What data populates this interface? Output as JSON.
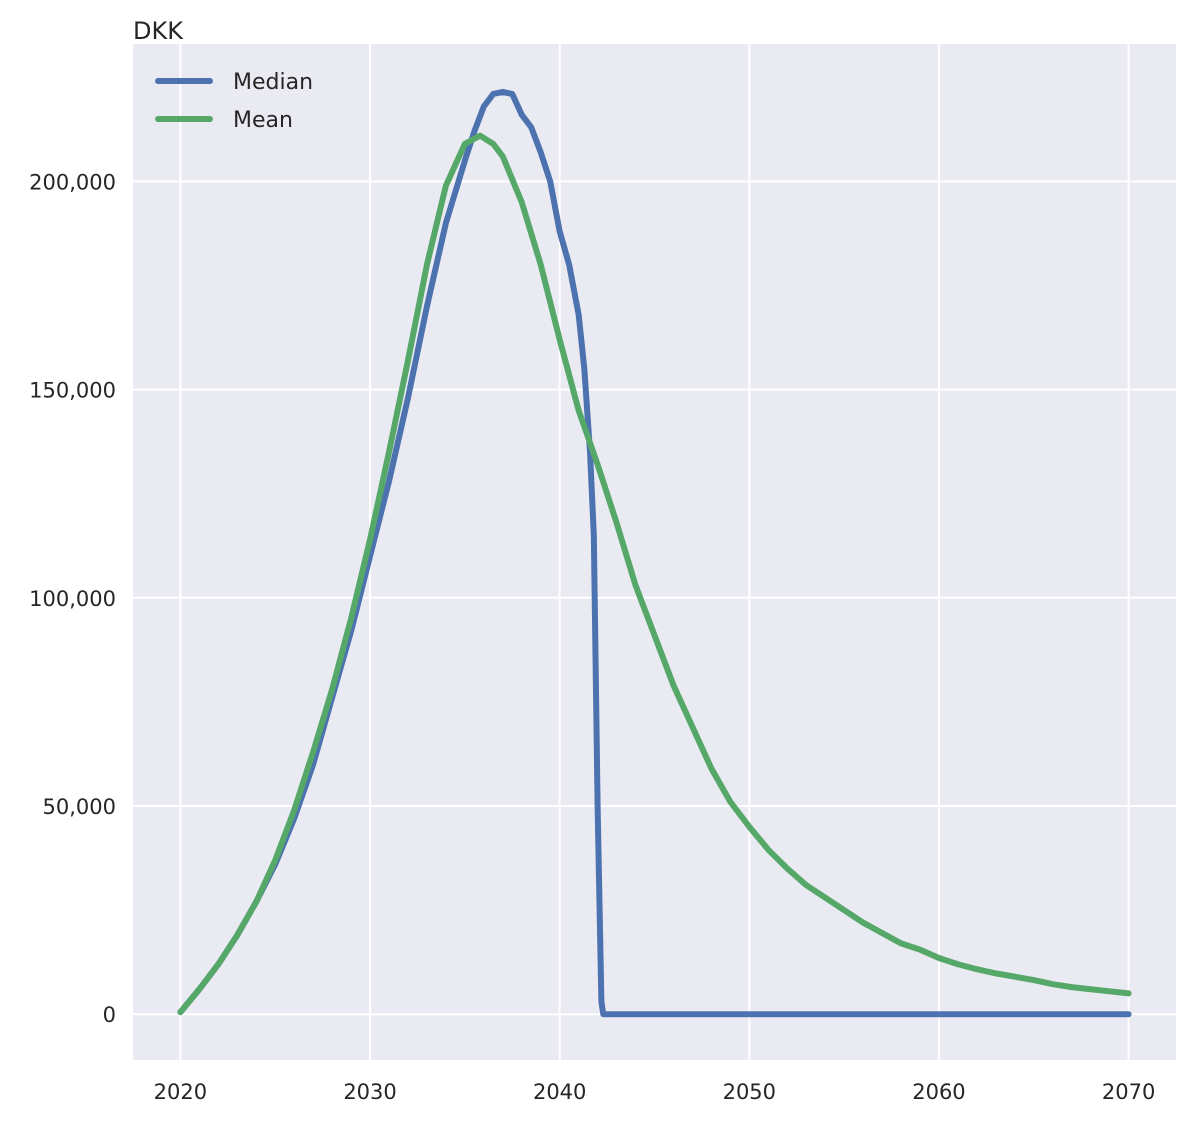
{
  "chart_data": {
    "type": "line",
    "ylabel": "DKK",
    "xlim": [
      2017.5,
      2072.5
    ],
    "ylim": [
      -11000,
      233000
    ],
    "x_ticks": [
      2020,
      2030,
      2040,
      2050,
      2060,
      2070
    ],
    "x_tick_labels": [
      "2020",
      "2030",
      "2040",
      "2050",
      "2060",
      "2070"
    ],
    "y_ticks": [
      0,
      50000,
      100000,
      150000,
      200000
    ],
    "y_tick_labels": [
      "0",
      "50,000",
      "100,000",
      "150,000",
      "200,000"
    ],
    "grid": true,
    "legend_position": "top-left",
    "background_color": "#eaeaf2",
    "series": [
      {
        "name": "Median",
        "color": "#4c72b0",
        "points": [
          [
            2020,
            500
          ],
          [
            2021,
            6000
          ],
          [
            2022,
            12000
          ],
          [
            2023,
            19000
          ],
          [
            2024,
            27000
          ],
          [
            2025,
            36000
          ],
          [
            2026,
            47000
          ],
          [
            2027,
            60000
          ],
          [
            2028,
            76000
          ],
          [
            2029,
            92000
          ],
          [
            2030,
            110000
          ],
          [
            2031,
            128000
          ],
          [
            2032,
            148000
          ],
          [
            2033,
            170000
          ],
          [
            2034,
            190000
          ],
          [
            2035,
            205000
          ],
          [
            2035.5,
            212000
          ],
          [
            2036,
            218000
          ],
          [
            2036.5,
            221000
          ],
          [
            2037,
            221500
          ],
          [
            2037.5,
            221000
          ],
          [
            2038,
            216000
          ],
          [
            2038.5,
            213000
          ],
          [
            2039,
            207000
          ],
          [
            2039.5,
            200000
          ],
          [
            2040,
            188000
          ],
          [
            2040.5,
            180000
          ],
          [
            2041,
            168000
          ],
          [
            2041.3,
            155000
          ],
          [
            2041.6,
            135000
          ],
          [
            2041.8,
            115000
          ],
          [
            2042,
            50000
          ],
          [
            2042.2,
            3000
          ],
          [
            2042.3,
            0
          ],
          [
            2045,
            0
          ],
          [
            2050,
            0
          ],
          [
            2055,
            0
          ],
          [
            2060,
            0
          ],
          [
            2065,
            0
          ],
          [
            2070,
            0
          ]
        ]
      },
      {
        "name": "Mean",
        "color": "#55a868",
        "points": [
          [
            2020,
            500
          ],
          [
            2021,
            6000
          ],
          [
            2022,
            12000
          ],
          [
            2023,
            19000
          ],
          [
            2024,
            27000
          ],
          [
            2025,
            37000
          ],
          [
            2026,
            49000
          ],
          [
            2027,
            63000
          ],
          [
            2028,
            78000
          ],
          [
            2029,
            95000
          ],
          [
            2030,
            114000
          ],
          [
            2031,
            135000
          ],
          [
            2032,
            157000
          ],
          [
            2033,
            180000
          ],
          [
            2034,
            199000
          ],
          [
            2035,
            209000
          ],
          [
            2035.8,
            211000
          ],
          [
            2036.5,
            209000
          ],
          [
            2037,
            206000
          ],
          [
            2038,
            195000
          ],
          [
            2039,
            180000
          ],
          [
            2040,
            162000
          ],
          [
            2041,
            145000
          ],
          [
            2042,
            132000
          ],
          [
            2043,
            118000
          ],
          [
            2044,
            103000
          ],
          [
            2045,
            91000
          ],
          [
            2046,
            79000
          ],
          [
            2047,
            69000
          ],
          [
            2048,
            59000
          ],
          [
            2049,
            51000
          ],
          [
            2050,
            45000
          ],
          [
            2051,
            39500
          ],
          [
            2052,
            35000
          ],
          [
            2053,
            31000
          ],
          [
            2054,
            28000
          ],
          [
            2055,
            25000
          ],
          [
            2056,
            22000
          ],
          [
            2057,
            19500
          ],
          [
            2058,
            17000
          ],
          [
            2059,
            15500
          ],
          [
            2060,
            13500
          ],
          [
            2061,
            12000
          ],
          [
            2062,
            10800
          ],
          [
            2063,
            9800
          ],
          [
            2064,
            9000
          ],
          [
            2065,
            8200
          ],
          [
            2066,
            7200
          ],
          [
            2067,
            6500
          ],
          [
            2068,
            6000
          ],
          [
            2069,
            5500
          ],
          [
            2070,
            5000
          ]
        ]
      }
    ]
  }
}
